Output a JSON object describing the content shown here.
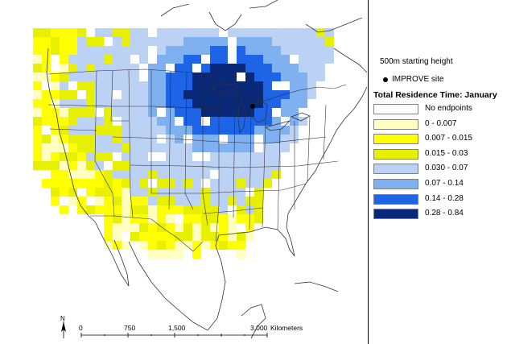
{
  "legend": {
    "height_note": "500m starting height",
    "site_label": "IMPROVE site",
    "title": "Total Residence Time: January",
    "classes": [
      {
        "label": "No endpoints",
        "color": "#ffffff"
      },
      {
        "label": "0 - 0.007",
        "color": "#ffffc0"
      },
      {
        "label": "0.007 - 0.015",
        "color": "#ffff00"
      },
      {
        "label": "0.015 - 0.03",
        "color": "#e6f000"
      },
      {
        "label": "0.030 - 0.07",
        "color": "#bcd2f5"
      },
      {
        "label": "0.07 - 0.14",
        "color": "#7fb0f0"
      },
      {
        "label": "0.14 - 0.28",
        "color": "#1e64e6"
      },
      {
        "label": "0.28 - 0.84",
        "color": "#0a2878"
      }
    ]
  },
  "scalebar": {
    "ticks": [
      "0",
      "750",
      "1,500",
      "3,000"
    ],
    "unit": "Kilometers"
  },
  "north_arrow": {
    "label": "N"
  }
}
